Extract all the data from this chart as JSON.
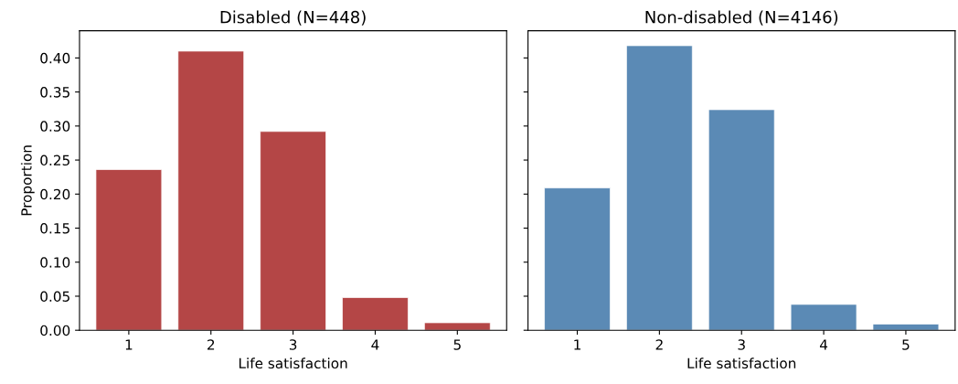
{
  "chart_data": [
    {
      "type": "bar",
      "title": "Disabled (N=448)",
      "xlabel": "Life satisfaction",
      "ylabel": "Proportion",
      "categories": [
        "1",
        "2",
        "3",
        "4",
        "5"
      ],
      "values": [
        0.236,
        0.41,
        0.292,
        0.048,
        0.011
      ],
      "color": "#b44646",
      "ylim": [
        0,
        0.44
      ],
      "yticks": [
        {
          "value": 0,
          "label": "0.00"
        },
        {
          "value": 0.05,
          "label": "0.05"
        },
        {
          "value": 0.1,
          "label": "0.10"
        },
        {
          "value": 0.15,
          "label": "0.15"
        },
        {
          "value": 0.2,
          "label": "0.20"
        },
        {
          "value": 0.25,
          "label": "0.25"
        },
        {
          "value": 0.3,
          "label": "0.30"
        },
        {
          "value": 0.35,
          "label": "0.35"
        },
        {
          "value": 0.4,
          "label": "0.40"
        }
      ],
      "grid": false,
      "legend": false
    },
    {
      "type": "bar",
      "title": "Non-disabled (N=4146)",
      "xlabel": "Life satisfaction",
      "categories": [
        "1",
        "2",
        "3",
        "4",
        "5"
      ],
      "values": [
        0.209,
        0.418,
        0.324,
        0.038,
        0.009
      ],
      "color": "#5b8ab5",
      "ylim": [
        0,
        0.44
      ],
      "yticks": [
        {
          "value": 0,
          "label": null
        },
        {
          "value": 0.05,
          "label": null
        },
        {
          "value": 0.1,
          "label": null
        },
        {
          "value": 0.15,
          "label": null
        },
        {
          "value": 0.2,
          "label": null
        },
        {
          "value": 0.25,
          "label": null
        },
        {
          "value": 0.3,
          "label": null
        },
        {
          "value": 0.35,
          "label": null
        },
        {
          "value": 0.4,
          "label": null
        }
      ],
      "tick_labels": "x",
      "grid": false,
      "legend": false
    }
  ]
}
